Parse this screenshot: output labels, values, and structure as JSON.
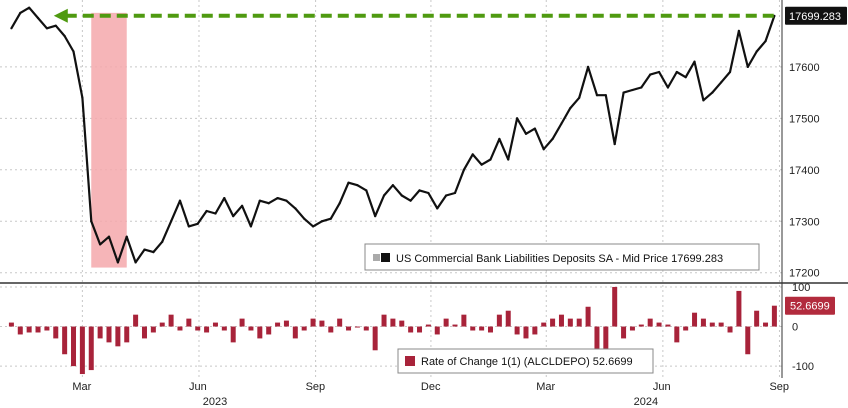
{
  "colors": {
    "price_line": "#111111",
    "target_arrow": "#4f9a10",
    "highlight": "#f4a8ab",
    "roc_bars": "#a8233a",
    "grid": "#c8c8c8",
    "price_tag_bg": "#111111",
    "roc_tag_bg": "#b22b3d"
  },
  "chart_data": [
    {
      "type": "line",
      "series": [
        {
          "name": "US Commercial Bank Liabilities Deposits SA - Mid Price",
          "x": [
            "2023-01-04",
            "2023-01-11",
            "2023-01-18",
            "2023-01-25",
            "2023-02-01",
            "2023-02-08",
            "2023-02-15",
            "2023-02-22",
            "2023-03-01",
            "2023-03-08",
            "2023-03-15",
            "2023-03-22",
            "2023-03-29",
            "2023-04-05",
            "2023-04-12",
            "2023-04-19",
            "2023-04-26",
            "2023-05-03",
            "2023-05-10",
            "2023-05-17",
            "2023-05-24",
            "2023-05-31",
            "2023-06-07",
            "2023-06-14",
            "2023-06-21",
            "2023-06-28",
            "2023-07-05",
            "2023-07-12",
            "2023-07-19",
            "2023-07-26",
            "2023-08-02",
            "2023-08-09",
            "2023-08-16",
            "2023-08-23",
            "2023-08-30",
            "2023-09-06",
            "2023-09-13",
            "2023-09-20",
            "2023-09-27",
            "2023-10-04",
            "2023-10-11",
            "2023-10-18",
            "2023-10-25",
            "2023-11-01",
            "2023-11-08",
            "2023-11-15",
            "2023-11-22",
            "2023-11-29",
            "2023-12-06",
            "2023-12-13",
            "2023-12-20",
            "2023-12-27",
            "2024-01-03",
            "2024-01-10",
            "2024-01-17",
            "2024-01-24",
            "2024-01-31",
            "2024-02-07",
            "2024-02-14",
            "2024-02-21",
            "2024-02-28",
            "2024-03-06",
            "2024-03-13",
            "2024-03-20",
            "2024-03-27",
            "2024-04-03",
            "2024-04-10",
            "2024-04-17",
            "2024-04-24",
            "2024-05-01",
            "2024-05-08",
            "2024-05-15",
            "2024-05-22",
            "2024-05-29",
            "2024-06-05",
            "2024-06-12",
            "2024-06-19",
            "2024-06-26",
            "2024-07-03",
            "2024-07-10",
            "2024-07-17",
            "2024-07-24",
            "2024-07-31",
            "2024-08-07",
            "2024-08-14",
            "2024-08-21",
            "2024-08-28"
          ],
          "values": [
            17675,
            17705,
            17715,
            17695,
            17675,
            17680,
            17660,
            17630,
            17540,
            17300,
            17255,
            17270,
            17220,
            17270,
            17220,
            17245,
            17240,
            17260,
            17300,
            17340,
            17290,
            17295,
            17320,
            17315,
            17345,
            17310,
            17330,
            17290,
            17340,
            17335,
            17345,
            17340,
            17325,
            17305,
            17290,
            17300,
            17305,
            17335,
            17375,
            17370,
            17360,
            17310,
            17350,
            17370,
            17350,
            17340,
            17360,
            17355,
            17325,
            17350,
            17355,
            17400,
            17430,
            17410,
            17420,
            17460,
            17420,
            17500,
            17470,
            17480,
            17440,
            17460,
            17490,
            17520,
            17540,
            17600,
            17545,
            17545,
            17450,
            17550,
            17555,
            17560,
            17585,
            17590,
            17560,
            17590,
            17580,
            17610,
            17535,
            17550,
            17570,
            17590,
            17670,
            17600,
            17630,
            17650,
            17699.283
          ]
        }
      ],
      "ylim": [
        17180,
        17730
      ],
      "yticks": [
        17200,
        17300,
        17400,
        17500,
        17600
      ],
      "xticks": [
        "Mar",
        "Jun",
        "Sep",
        "Dec",
        "Mar",
        "Jun",
        "Sep"
      ],
      "year_labels": [
        "2023",
        "2024"
      ],
      "last_value_label": "17699.283",
      "legend": "US Commercial Bank Liabilities Deposits SA - Mid Price 17699.283",
      "legend_position": "bottom-right",
      "grid": true,
      "highlight_region": {
        "x_start": "2023-03-08",
        "x_end": "2023-04-05"
      }
    },
    {
      "type": "bar",
      "series": [
        {
          "name": "Rate of Change 1(1) (ALCLDEPO)",
          "values": [
            10,
            -20,
            -15,
            -15,
            -10,
            -30,
            -70,
            -100,
            -120,
            -110,
            -30,
            -40,
            -50,
            -40,
            30,
            -30,
            -15,
            10,
            30,
            -10,
            20,
            -10,
            -15,
            10,
            -10,
            -40,
            20,
            -10,
            -30,
            -20,
            10,
            15,
            -30,
            -10,
            20,
            15,
            -15,
            20,
            -10,
            0,
            -10,
            -60,
            30,
            20,
            15,
            -15,
            -15,
            5,
            -20,
            20,
            5,
            30,
            -10,
            -10,
            -15,
            30,
            40,
            -20,
            -30,
            -20,
            10,
            20,
            30,
            20,
            20,
            50,
            -60,
            -60,
            100,
            -30,
            -10,
            5,
            20,
            10,
            5,
            -40,
            -10,
            35,
            20,
            10,
            10,
            -15,
            90,
            -70,
            40,
            10,
            52.6699
          ]
        }
      ],
      "ylim": [
        -130,
        110
      ],
      "yticks": [
        100,
        0,
        -100
      ],
      "last_value_label": "52.6699",
      "legend": "Rate of Change 1(1) (ALCLDEPO) 52.6699",
      "legend_position": "bottom-center",
      "grid": true
    }
  ]
}
